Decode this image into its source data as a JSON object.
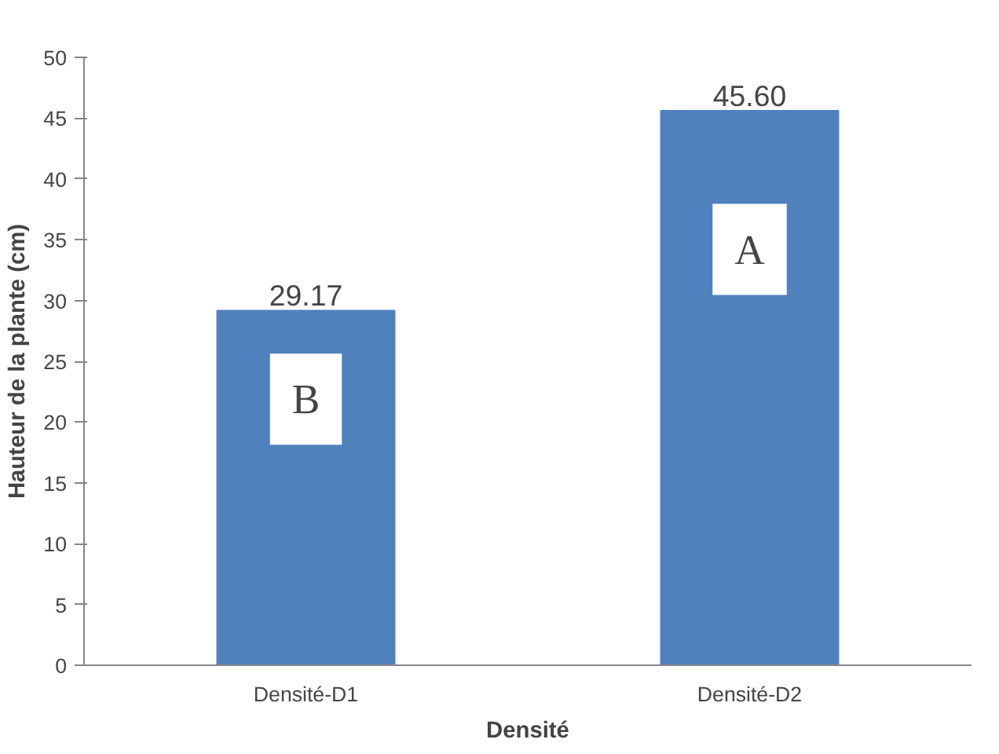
{
  "chart_data": {
    "type": "bar",
    "xlabel": "Densité",
    "ylabel": "Hauteur de la plante (cm)",
    "categories": [
      "Densité-D1",
      "Densité-D2"
    ],
    "values": [
      29.17,
      45.6
    ],
    "value_labels": [
      "29.17",
      "45.60"
    ],
    "color": "#4f81bd",
    "ylim": [
      0,
      50
    ],
    "yticks": [
      0,
      5,
      10,
      15,
      20,
      25,
      30,
      35,
      40,
      45,
      50
    ],
    "grid": false,
    "annotations": [
      "B",
      "A"
    ]
  }
}
